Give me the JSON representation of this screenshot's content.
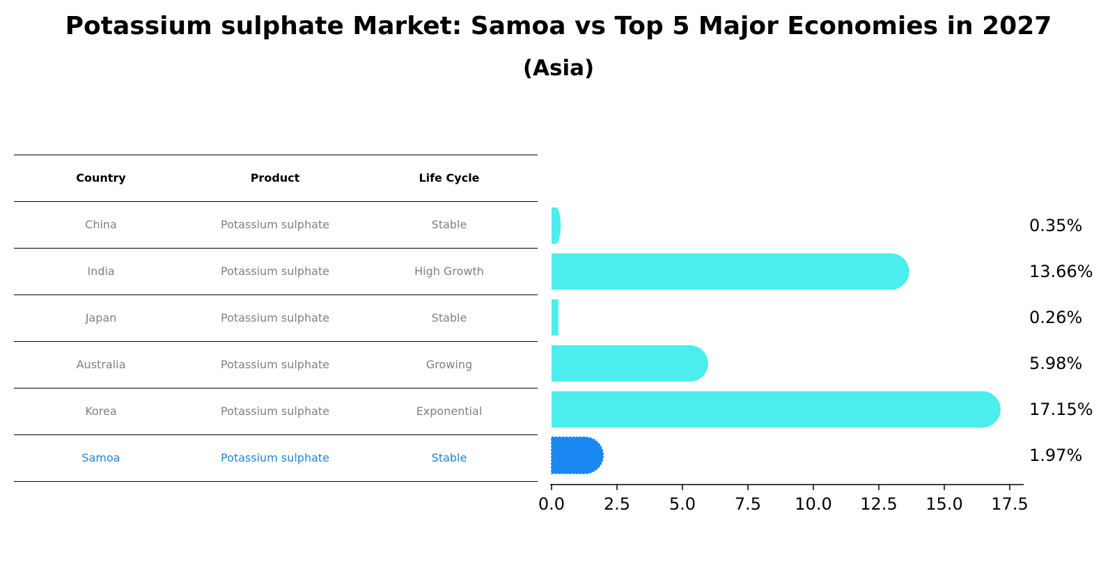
{
  "title": "Potassium sulphate Market: Samoa vs Top 5 Major Economies in 2027",
  "subtitle": "(Asia)",
  "table": {
    "headers": [
      "Country",
      "Product",
      "Life Cycle"
    ],
    "rows": [
      {
        "country": "China",
        "product": "Potassium sulphate",
        "life_cycle": "Stable"
      },
      {
        "country": "India",
        "product": "Potassium sulphate",
        "life_cycle": "High Growth"
      },
      {
        "country": "Japan",
        "product": "Potassium sulphate",
        "life_cycle": "Stable"
      },
      {
        "country": "Australia",
        "product": "Potassium sulphate",
        "life_cycle": "Growing"
      },
      {
        "country": "Korea",
        "product": "Potassium sulphate",
        "life_cycle": "Exponential"
      },
      {
        "country": "Samoa",
        "product": "Potassium sulphate",
        "life_cycle": "Stable"
      }
    ]
  },
  "colors": {
    "bar": "#4beeec",
    "highlight_bar": "#1b87f0",
    "highlight_text": "#1f86d0",
    "muted_text": "#808080"
  },
  "chart_data": {
    "type": "bar",
    "orientation": "horizontal",
    "categories": [
      "China",
      "India",
      "Japan",
      "Australia",
      "Korea",
      "Samoa"
    ],
    "values": [
      0.35,
      13.66,
      0.26,
      5.98,
      17.15,
      1.97
    ],
    "value_labels": [
      "0.35%",
      "13.66%",
      "0.26%",
      "5.98%",
      "17.15%",
      "1.97%"
    ],
    "highlight": "Samoa",
    "xlim": [
      0,
      18
    ],
    "xticks": [
      0.0,
      2.5,
      5.0,
      7.5,
      10.0,
      12.5,
      15.0,
      17.5
    ],
    "xtick_labels": [
      "0.0",
      "2.5",
      "5.0",
      "7.5",
      "10.0",
      "12.5",
      "15.0",
      "17.5"
    ],
    "xlabel": "",
    "ylabel": ""
  }
}
